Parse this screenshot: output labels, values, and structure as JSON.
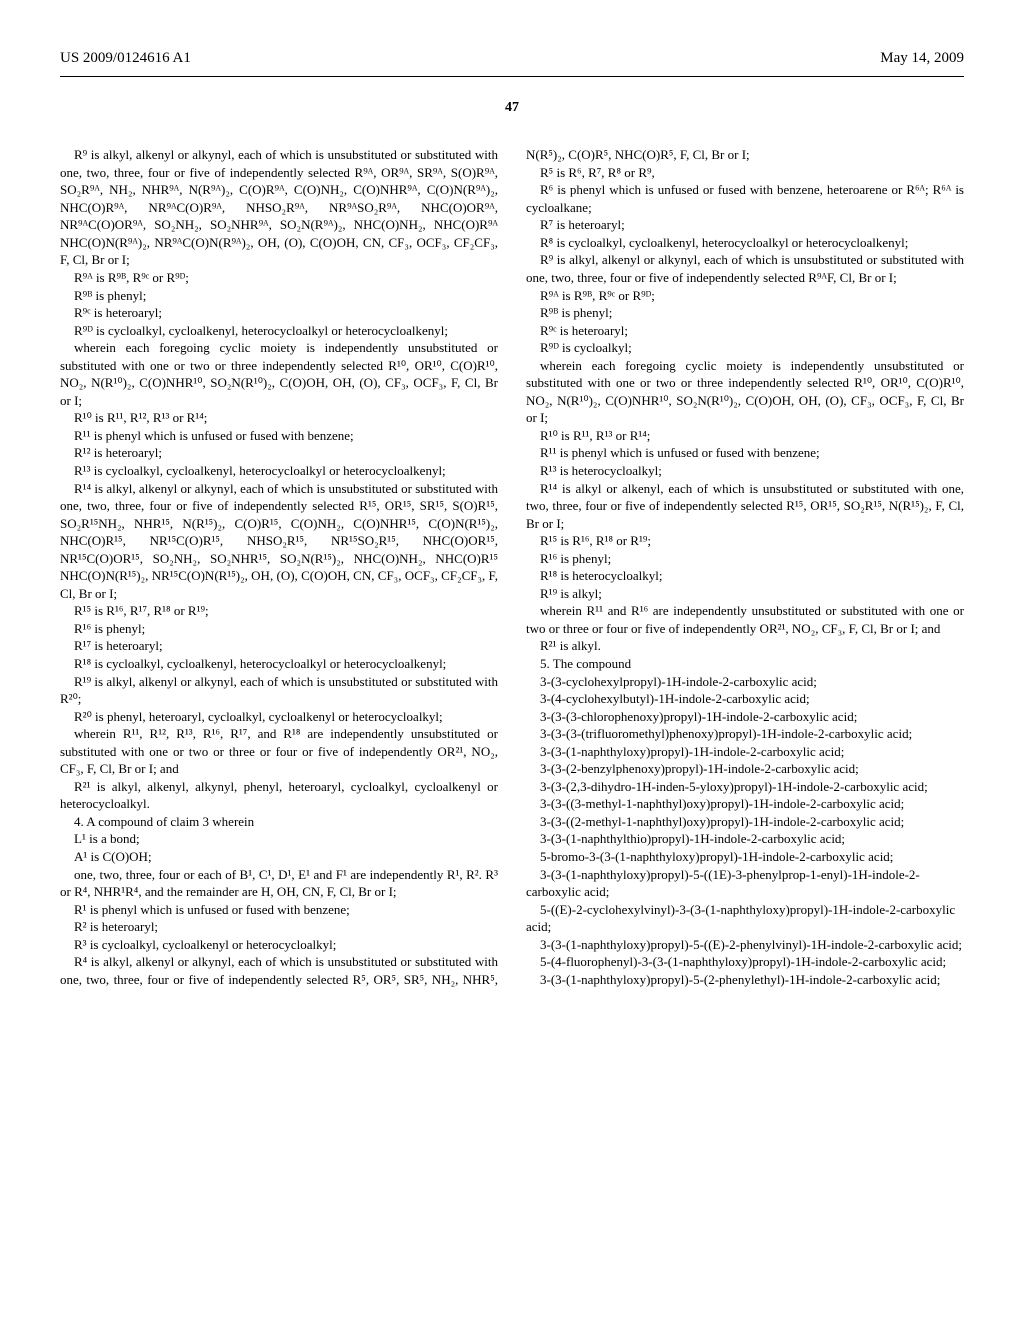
{
  "header": {
    "left": "US 2009/0124616 A1",
    "right": "May 14, 2009"
  },
  "page_number": "47",
  "left_col": {
    "p01": "R⁹ is alkyl, alkenyl or alkynyl, each of which is unsubstituted or substituted with one, two, three, four or five of independently selected R⁹ᴬ, OR⁹ᴬ, SR⁹ᴬ, S(O)R⁹ᴬ, SO₂R⁹ᴬ, NH₂, NHR⁹ᴬ, N(R⁹ᴬ)₂, C(O)R⁹ᴬ, C(O)NH₂, C(O)NHR⁹ᴬ, C(O)N(R⁹ᴬ)₂, NHC(O)R⁹ᴬ, NR⁹ᴬC(O)R⁹ᴬ, NHSO₂R⁹ᴬ, NR⁹ᴬSO₂R⁹ᴬ, NHC(O)OR⁹ᴬ, NR⁹ᴬC(O)OR⁹ᴬ, SO₂NH₂, SO₂NHR⁹ᴬ, SO₂N(R⁹ᴬ)₂, NHC(O)NH₂, NHC(O)R⁹ᴬ NHC(O)N(R⁹ᴬ)₂, NR⁹ᴬC(O)N(R⁹ᴬ)₂, OH, (O), C(O)OH, CN, CF₃, OCF₃, CF₂CF₃, F, Cl, Br or I;",
    "p02": "R⁹ᴬ is R⁹ᴮ, R⁹ᶜ or R⁹ᴰ;",
    "p03": "R⁹ᴮ is phenyl;",
    "p04": "R⁹ᶜ is heteroaryl;",
    "p05": "R⁹ᴰ is cycloalkyl, cycloalkenyl, heterocycloalkyl or heterocycloalkenyl;",
    "p06": "wherein each foregoing cyclic moiety is independently unsubstituted or substituted with one or two or three independently selected R¹⁰, OR¹⁰, C(O)R¹⁰, NO₂, N(R¹⁰)₂, C(O)NHR¹⁰, SO₂N(R¹⁰)₂, C(O)OH, OH, (O), CF₃, OCF₃, F, Cl, Br or I;",
    "p07": "R¹⁰ is R¹¹, R¹², R¹³ or R¹⁴;",
    "p08": "R¹¹ is phenyl which is unfused or fused with benzene;",
    "p09": "R¹² is heteroaryl;",
    "p10": "R¹³ is cycloalkyl, cycloalkenyl, heterocycloalkyl or heterocycloalkenyl;",
    "p11": "R¹⁴ is alkyl, alkenyl or alkynyl, each of which is unsubstituted or substituted with one, two, three, four or five of independently selected R¹⁵, OR¹⁵, SR¹⁵, S(O)R¹⁵, SO₂R¹⁵NH₂, NHR¹⁵, N(R¹⁵)₂, C(O)R¹⁵, C(O)NH₂, C(O)NHR¹⁵, C(O)N(R¹⁵)₂, NHC(O)R¹⁵, NR¹⁵C(O)R¹⁵, NHSO₂R¹⁵, NR¹⁵SO₂R¹⁵, NHC(O)OR¹⁵, NR¹⁵C(O)OR¹⁵, SO₂NH₂, SO₂NHR¹⁵, SO₂N(R¹⁵)₂, NHC(O)NH₂, NHC(O)R¹⁵ NHC(O)N(R¹⁵)₂, NR¹⁵C(O)N(R¹⁵)₂, OH, (O), C(O)OH, CN, CF₃, OCF₃, CF₂CF₃, F, Cl, Br or I;",
    "p12": "R¹⁵ is R¹⁶, R¹⁷, R¹⁸ or R¹⁹;",
    "p13": "R¹⁶ is phenyl;",
    "p14": "R¹⁷ is heteroaryl;",
    "p15": "R¹⁸ is cycloalkyl, cycloalkenyl, heterocycloalkyl or heterocycloalkenyl;",
    "p16": "R¹⁹ is alkyl, alkenyl or alkynyl, each of which is unsubstituted or substituted with R²⁰;",
    "p17": "R²⁰ is phenyl, heteroaryl, cycloalkyl, cycloalkenyl or heterocycloalkyl;",
    "p18": "wherein R¹¹, R¹², R¹³, R¹⁶, R¹⁷, and R¹⁸ are independently unsubstituted or substituted with one or two or three or four or five of independently OR²¹, NO₂, CF₃, F, Cl, Br or I; and",
    "p19": "R²¹ is alkyl, alkenyl, alkynyl, phenyl, heteroaryl, cycloalkyl, cycloalkenyl or heterocycloalkyl.",
    "p20": "4. A compound of claim 3 wherein",
    "p21": "L¹ is a bond;",
    "p22": "A¹ is C(O)OH;",
    "p23": "one, two, three, four or each of B¹, C¹, D¹, E¹ and F¹ are independently R¹, R². R³ or R⁴, NHR¹R⁴, and the remainder are H, OH, CN, F, Cl, Br or I;",
    "p24": "R¹ is phenyl which is unfused or fused with benzene;",
    "p25": "R² is heteroaryl;",
    "p26": "R³ is cycloalkyl, cycloalkenyl or heterocycloalkyl;",
    "p27": "R⁴ is alkyl, alkenyl or alkynyl, each of which is unsubstituted or substituted with one, two, three, four or five of independently selected R⁵, OR⁵, SR⁵, NH₂, NHR⁵, N(R⁵)₂, C(O)R⁵, NHC(O)R⁵, F, Cl, Br or I;",
    "p28": "R⁵ is R⁶, R⁷, R⁸ or R⁹,"
  },
  "right_col": {
    "p01": "R⁶ is phenyl which is unfused or fused with benzene, heteroarene or R⁶ᴬ; R⁶ᴬ is cycloalkane;",
    "p02": "R⁷ is heteroaryl;",
    "p03": "R⁸ is cycloalkyl, cycloalkenyl, heterocycloalkyl or heterocycloalkenyl;",
    "p04": "R⁹ is alkyl, alkenyl or alkynyl, each of which is unsubstituted or substituted with one, two, three, four or five of independently selected R⁹ᴬF, Cl, Br or I;",
    "p05": "R⁹ᴬ is R⁹ᴮ, R⁹ᶜ or R⁹ᴰ;",
    "p06": "R⁹ᴮ is phenyl;",
    "p07": "R⁹ᶜ is heteroaryl;",
    "p08": "R⁹ᴰ is cycloalkyl;",
    "p09": "wherein each foregoing cyclic moiety is independently unsubstituted or substituted with one or two or three independently selected R¹⁰, OR¹⁰, C(O)R¹⁰, NO₂, N(R¹⁰)₂, C(O)NHR¹⁰, SO₂N(R¹⁰)₂, C(O)OH, OH, (O), CF₃, OCF₃, F, Cl, Br or I;",
    "p10": "R¹⁰ is R¹¹, R¹³ or R¹⁴;",
    "p11": "R¹¹ is phenyl which is unfused or fused with benzene;",
    "p12": "R¹³ is heterocycloalkyl;",
    "p13": "R¹⁴ is alkyl or alkenyl, each of which is unsubstituted or substituted with one, two, three, four or five of independently selected R¹⁵, OR¹⁵, SO₂R¹⁵, N(R¹⁵)₂, F, Cl, Br or I;",
    "p14": "R¹⁵ is R¹⁶, R¹⁸ or R¹⁹;",
    "p15": "R¹⁶ is phenyl;",
    "p16": "R¹⁸ is heterocycloalkyl;",
    "p17": "R¹⁹ is alkyl;",
    "p18": "wherein R¹¹ and R¹⁶ are independently unsubstituted or substituted with one or two or three or four or five of independently OR²¹, NO₂, CF₃, F, Cl, Br or I; and",
    "p19": "R²¹ is alkyl.",
    "p20": "5. The compound",
    "p21": "3-(3-cyclohexylpropyl)-1H-indole-2-carboxylic acid;",
    "p22": "3-(4-cyclohexylbutyl)-1H-indole-2-carboxylic acid;",
    "p23": "3-(3-(3-chlorophenoxy)propyl)-1H-indole-2-carboxylic acid;",
    "p24": "3-(3-(3-(trifluoromethyl)phenoxy)propyl)-1H-indole-2-carboxylic acid;",
    "p25": "3-(3-(1-naphthyloxy)propyl)-1H-indole-2-carboxylic acid;",
    "p26": "3-(3-(2-benzylphenoxy)propyl)-1H-indole-2-carboxylic acid;",
    "p27": "3-(3-(2,3-dihydro-1H-inden-5-yloxy)propyl)-1H-indole-2-carboxylic acid;",
    "p28": "3-(3-((3-methyl-1-naphthyl)oxy)propyl)-1H-indole-2-carboxylic acid;",
    "p29": "3-(3-((2-methyl-1-naphthyl)oxy)propyl)-1H-indole-2-carboxylic acid;",
    "p30": "3-(3-(1-naphthylthio)propyl)-1H-indole-2-carboxylic acid;",
    "p31": "5-bromo-3-(3-(1-naphthyloxy)propyl)-1H-indole-2-carboxylic acid;",
    "p32": "3-(3-(1-naphthyloxy)propyl)-5-((1E)-3-phenylprop-1-enyl)-1H-indole-2-carboxylic acid;",
    "p33": "5-((E)-2-cyclohexylvinyl)-3-(3-(1-naphthyloxy)propyl)-1H-indole-2-carboxylic acid;",
    "p34": "3-(3-(1-naphthyloxy)propyl)-5-((E)-2-phenylvinyl)-1H-indole-2-carboxylic acid;",
    "p35": "5-(4-fluorophenyl)-3-(3-(1-naphthyloxy)propyl)-1H-indole-2-carboxylic acid;",
    "p36": "3-(3-(1-naphthyloxy)propyl)-5-(2-phenylethyl)-1H-indole-2-carboxylic acid;"
  }
}
